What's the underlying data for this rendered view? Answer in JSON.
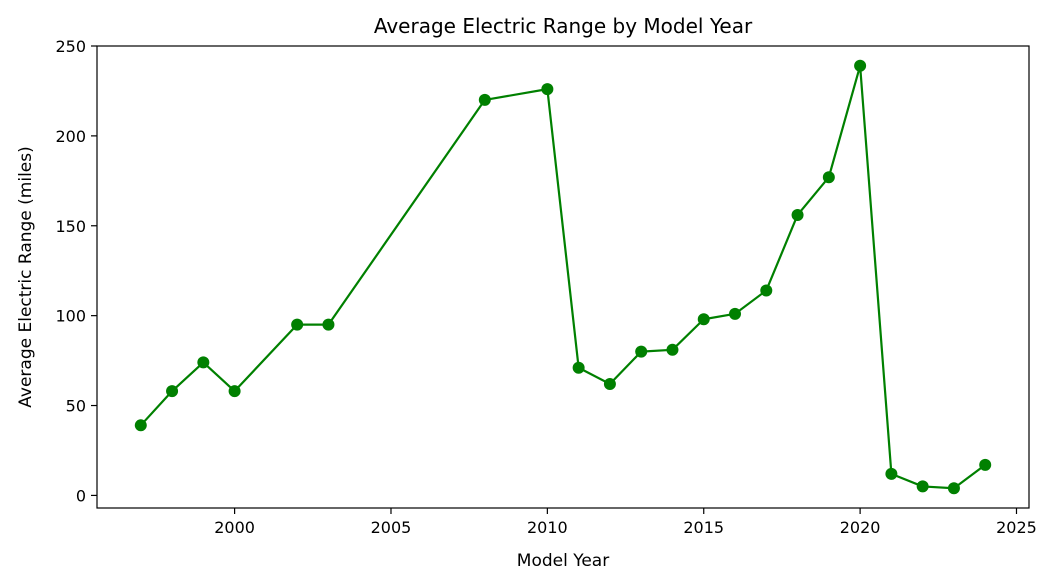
{
  "chart_data": {
    "type": "line",
    "title": "Average Electric Range by Model Year",
    "xlabel": "Model Year",
    "ylabel": "Average Electric Range (miles)",
    "xlim": [
      1995.6,
      2025.4
    ],
    "ylim": [
      -7,
      250
    ],
    "xticks": [
      2000,
      2005,
      2010,
      2015,
      2020,
      2025
    ],
    "yticks": [
      0,
      50,
      100,
      150,
      200,
      250
    ],
    "grid": false,
    "color": "#008000",
    "marker": "circle",
    "series": [
      {
        "x": [
          1997,
          1998,
          1999,
          2000,
          2002,
          2003,
          2008,
          2010,
          2011,
          2012,
          2013,
          2014,
          2015,
          2016,
          2017,
          2018,
          2019,
          2020,
          2021,
          2022,
          2023,
          2024
        ],
        "y": [
          39,
          58,
          74,
          58,
          95,
          95,
          220,
          226,
          71,
          62,
          80,
          81,
          98,
          101,
          114,
          156,
          177,
          239,
          12,
          5,
          4,
          17
        ]
      }
    ]
  }
}
